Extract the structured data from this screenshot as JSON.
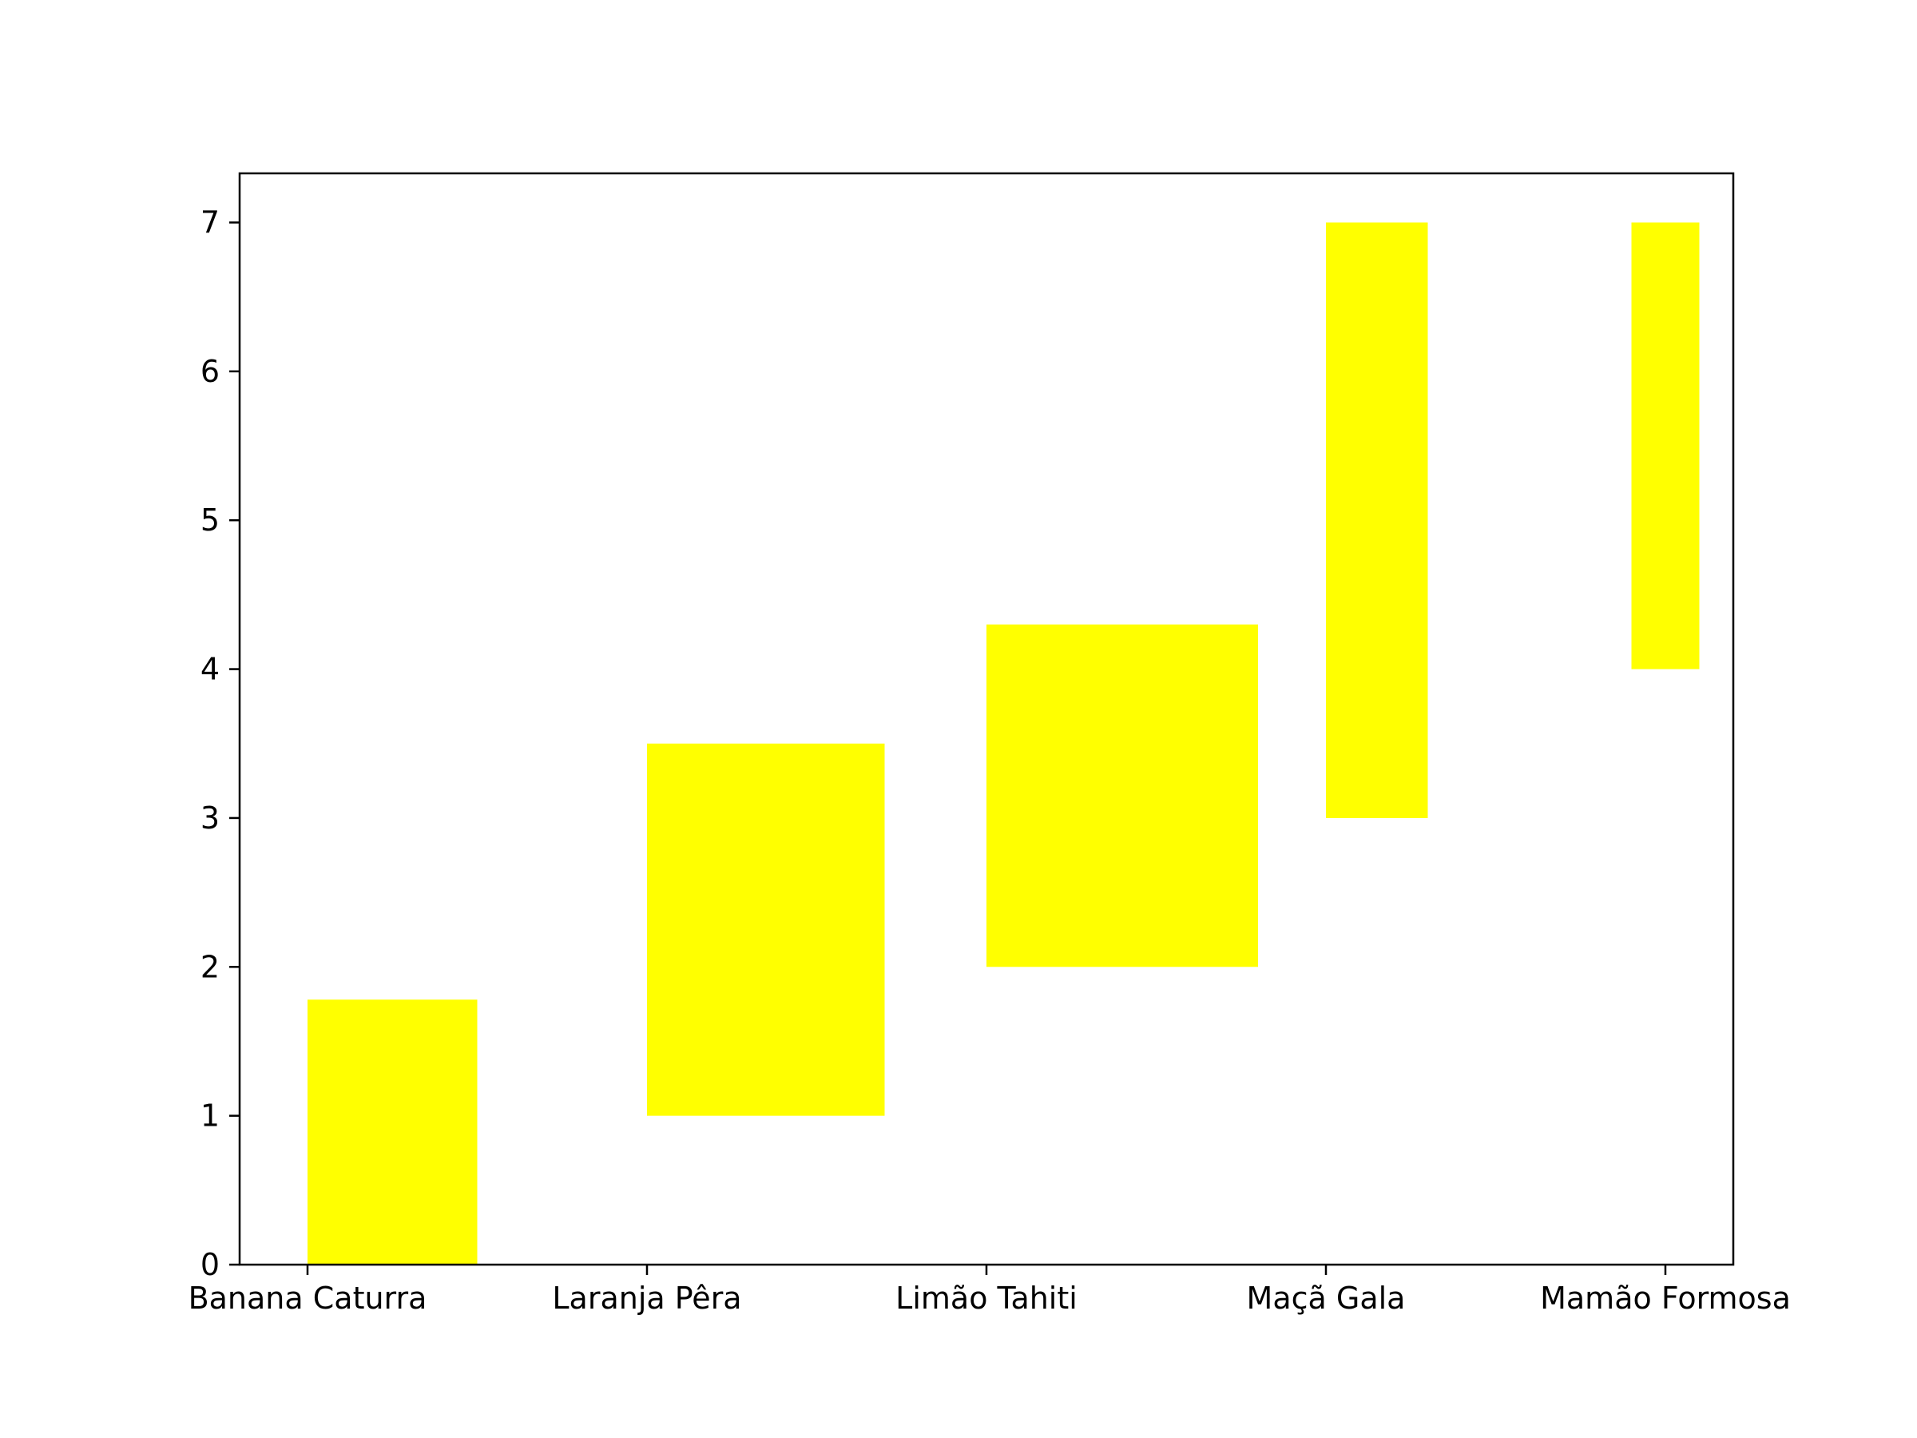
{
  "chart_data": {
    "type": "bar",
    "title": "",
    "xlabel": "",
    "ylabel": "",
    "categories": [
      "Banana Caturra",
      "Laranja Pêra",
      "Limão Tahiti",
      "Maçã Gala",
      "Mamão Formosa"
    ],
    "bars": [
      {
        "category": "Banana Caturra",
        "bottom": 0,
        "top": 1.78,
        "width": 0.5,
        "align": "edge"
      },
      {
        "category": "Laranja Pêra",
        "bottom": 1,
        "top": 3.5,
        "width": 0.7,
        "align": "edge"
      },
      {
        "category": "Limão Tahiti",
        "bottom": 2,
        "top": 4.3,
        "width": 0.8,
        "align": "edge"
      },
      {
        "category": "Maçã Gala",
        "bottom": 3,
        "top": 7,
        "width": 0.3,
        "align": "edge"
      },
      {
        "category": "Mamão Formosa",
        "bottom": 4,
        "top": 7,
        "width": 0.2,
        "align": "center"
      }
    ],
    "yticks": [
      0,
      1,
      2,
      3,
      4,
      5,
      6,
      7
    ],
    "ylim": [
      0,
      7.33
    ],
    "xlim": [
      -0.2,
      4.2
    ],
    "grid": false,
    "legend": "none",
    "colors": {
      "bar": "#ffff00",
      "axis": "#000000",
      "background": "#ffffff"
    }
  }
}
